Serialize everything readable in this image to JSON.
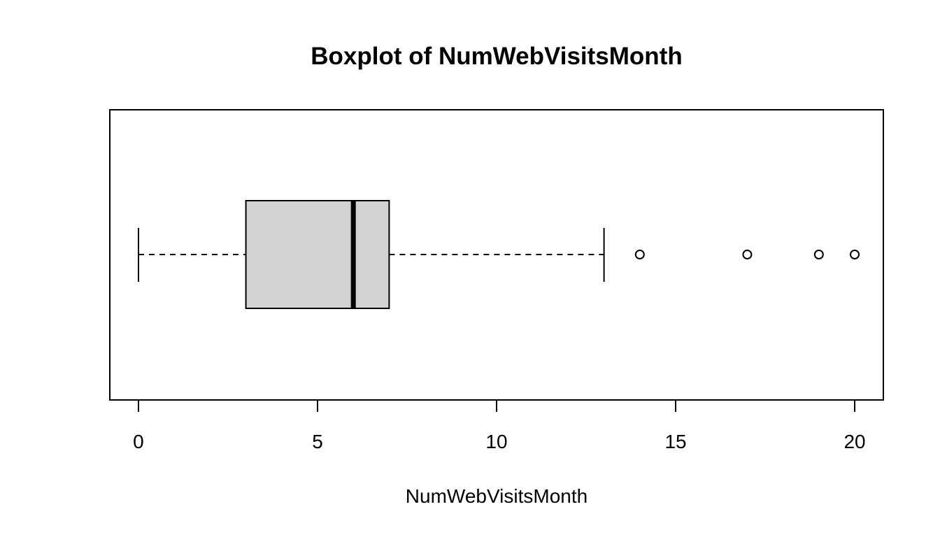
{
  "chart_data": {
    "type": "boxplot",
    "orientation": "horizontal",
    "title": "Boxplot of NumWebVisitsMonth",
    "xlabel": "NumWebVisitsMonth",
    "ylabel": "",
    "xlim": [
      -0.8,
      20.8
    ],
    "x_ticks": [
      0,
      5,
      10,
      15,
      20
    ],
    "x_tick_labels": [
      "0",
      "5",
      "10",
      "15",
      "20"
    ],
    "grid": false,
    "box": {
      "whisker_low": 0,
      "q1": 3,
      "median": 6,
      "q3": 7,
      "whisker_high": 13,
      "outliers": [
        14,
        17,
        19,
        20
      ]
    },
    "colors": {
      "box_fill": "#d3d3d3",
      "line": "#000000"
    }
  }
}
